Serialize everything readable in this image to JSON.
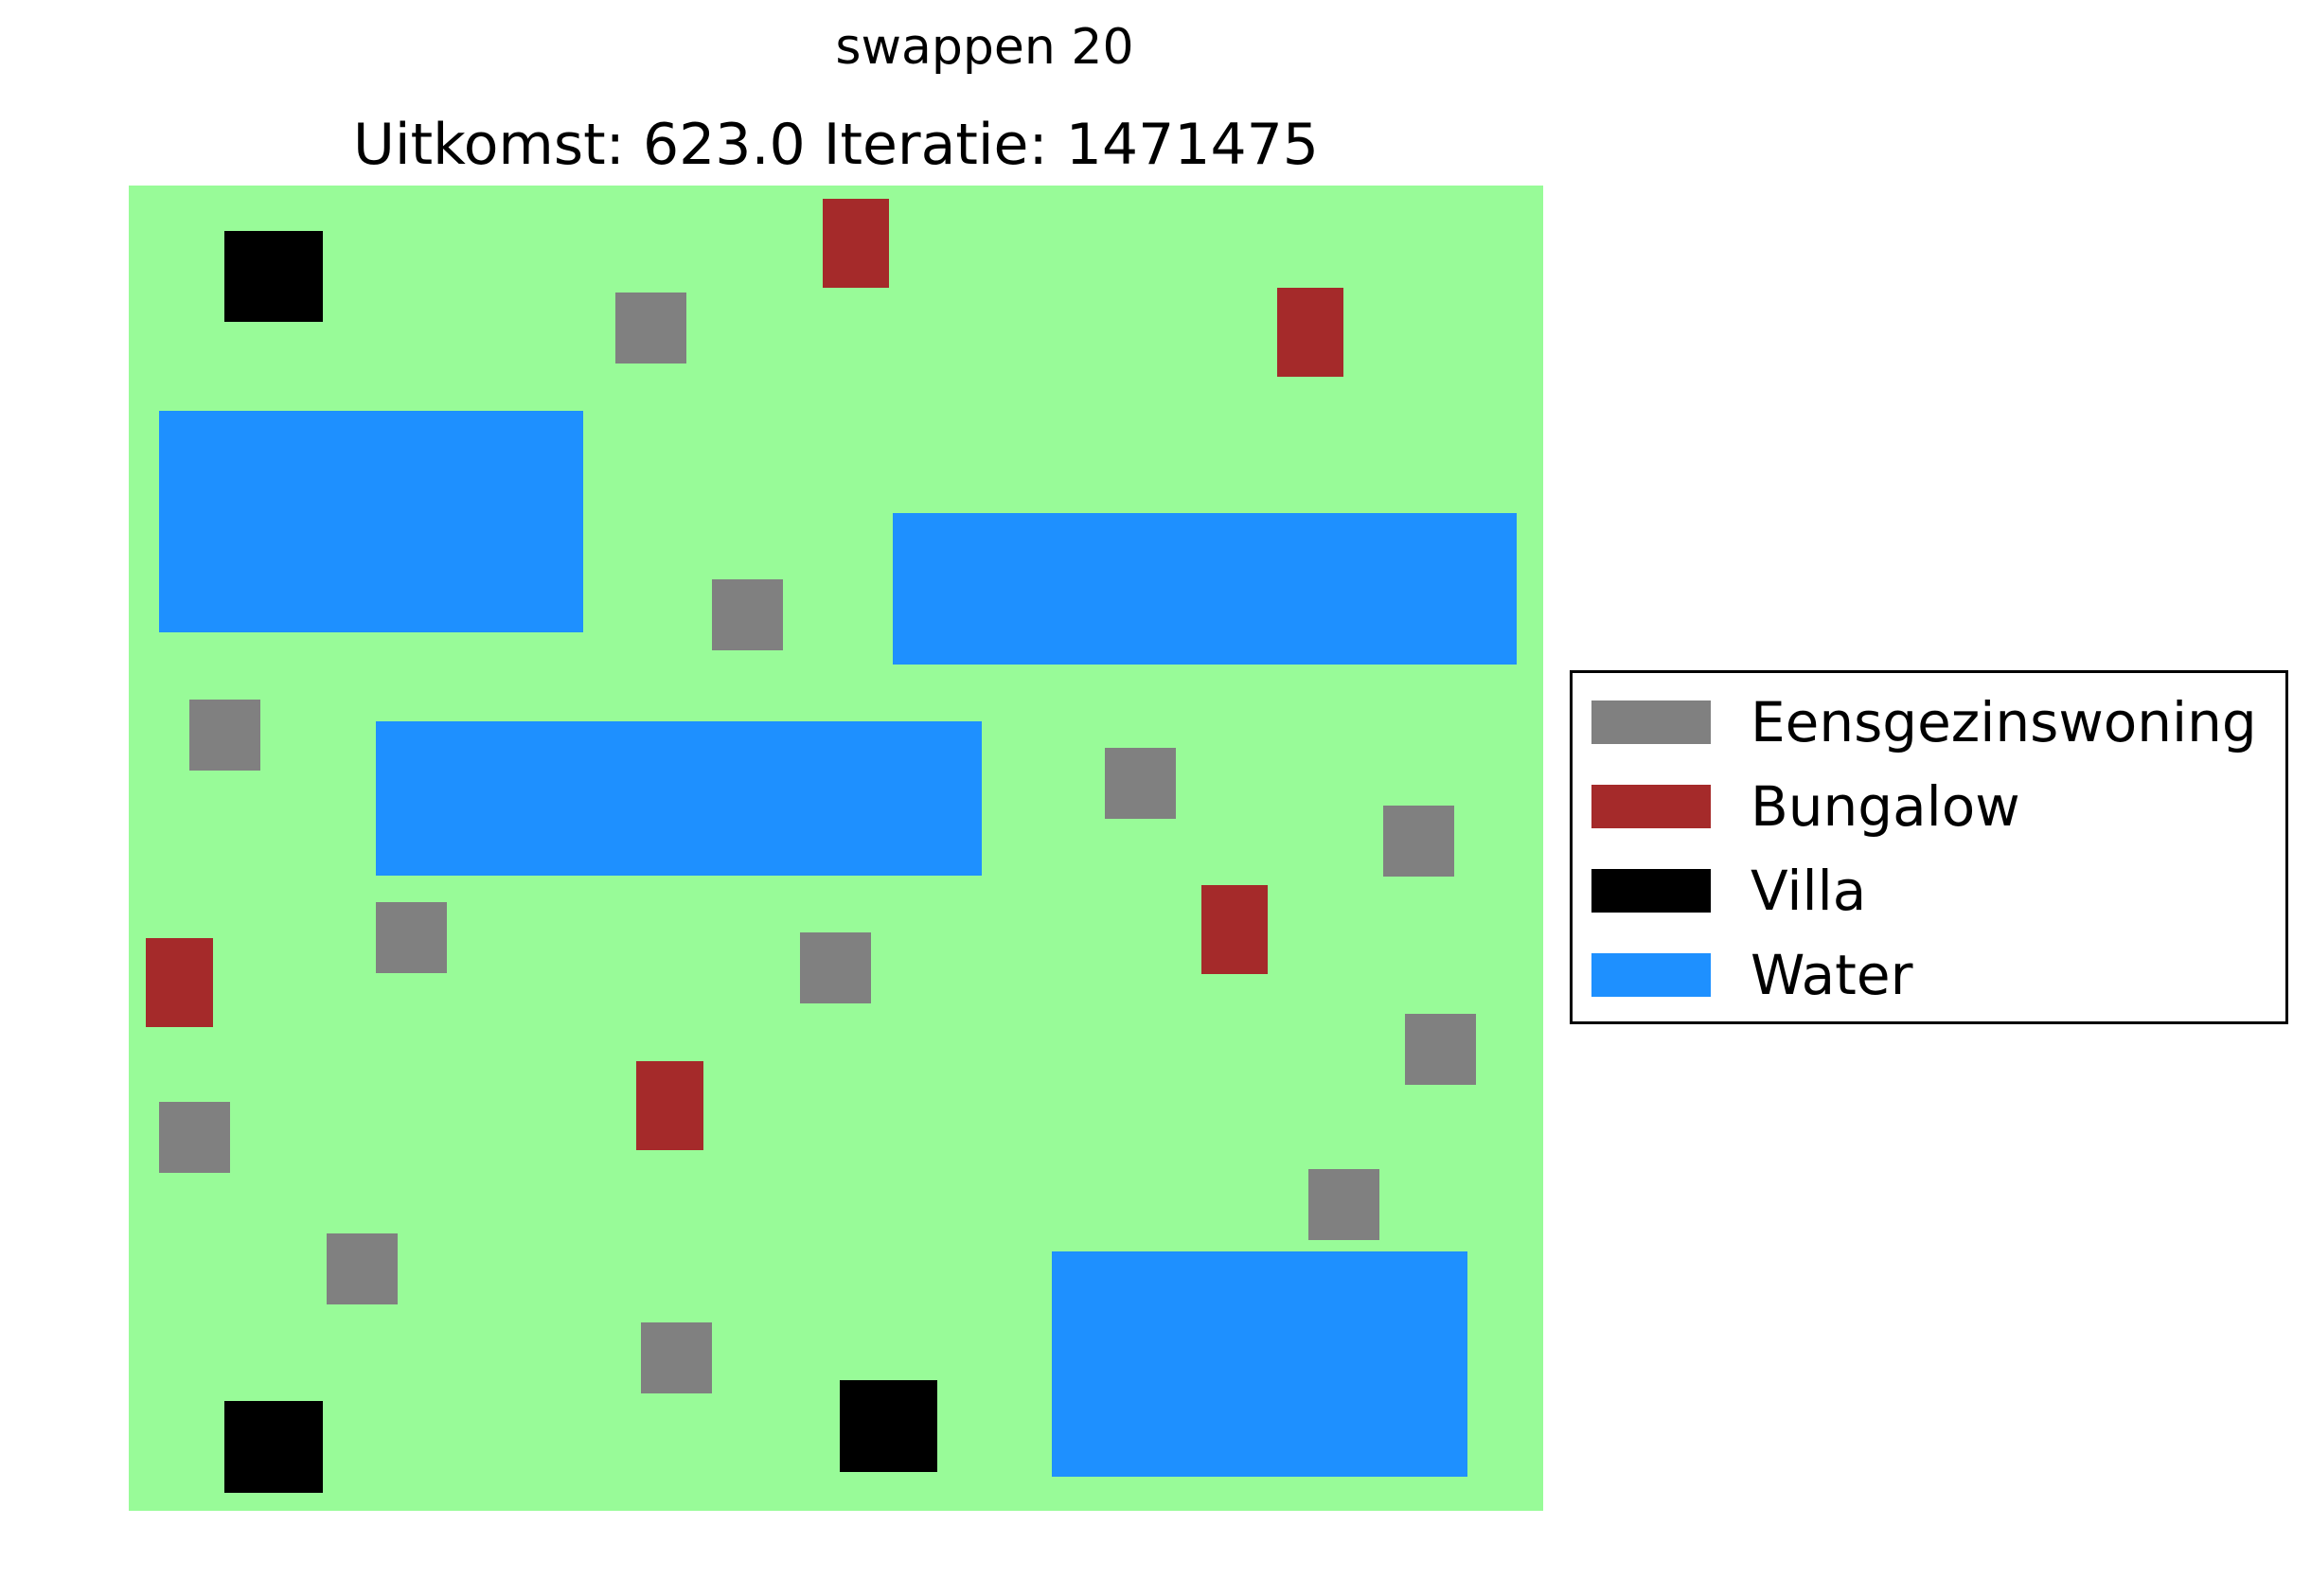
{
  "suptitle": "swappen 20",
  "title": "Uitkomst: 623.0 Iteratie: 1471475",
  "colors": {
    "land": "#98fb98",
    "eensgezinswoning": "#808080",
    "bungalow": "#a52a2a",
    "villa": "#000000",
    "water": "#1e90ff"
  },
  "legend": [
    {
      "label": "Eensgezinswoning",
      "color": "#808080"
    },
    {
      "label": "Bungalow",
      "color": "#a52a2a"
    },
    {
      "label": "Villa",
      "color": "#000000"
    },
    {
      "label": "Water",
      "color": "#1e90ff"
    }
  ]
}
